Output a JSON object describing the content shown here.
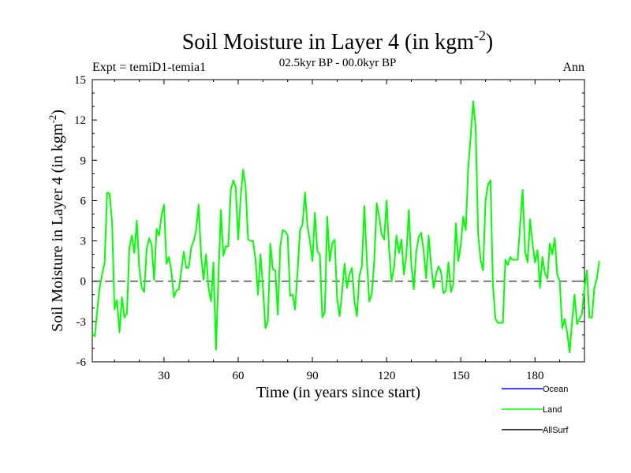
{
  "chart_data": {
    "type": "line",
    "title_main": "Soil Moisture in Layer 4 (in kgm",
    "title_sup": "-2",
    "title_close": ")",
    "subtitle": "02.5kyr BP - 00.0kyr BP",
    "left_label": "Expt = temiD1-temia1",
    "right_label": "Ann",
    "xlabel": "Time (in years since start)",
    "ylabel_main": "Soil Moisture in Layer 4 (in kgm",
    "ylabel_sup": "-2",
    "ylabel_close": ")",
    "xlim": [
      1,
      200
    ],
    "ylim": [
      -6,
      15
    ],
    "x_ticks": [
      "30",
      "60",
      "90",
      "120",
      "150",
      "180"
    ],
    "y_ticks": [
      "15",
      "12",
      "9",
      "6",
      "3",
      "0",
      "-3",
      "-6"
    ],
    "zero_line": "dashed",
    "series": [
      {
        "name": "Ocean",
        "color": "#0000ff",
        "values": []
      },
      {
        "name": "Land",
        "color": "#00ff00",
        "values": [
          -3.9,
          -4.1,
          -2.2,
          -0.4,
          0.5,
          1.4,
          6.6,
          6.5,
          4.4,
          -2.1,
          -1.4,
          -3.8,
          -1.2,
          -2.7,
          -2.4,
          2.5,
          3.4,
          2.1,
          4.5,
          1.0,
          -0.5,
          -0.8,
          2.4,
          3.2,
          2.7,
          0.1,
          3.9,
          3.4,
          4.9,
          5.7,
          1.3,
          1.8,
          0.7,
          -1.2,
          -0.7,
          -0.6,
          0.8,
          2.2,
          1.0,
          1.0,
          2.5,
          3.0,
          3.8,
          5.7,
          1.9,
          0.1,
          2.0,
          -0.5,
          -1.5,
          1.4,
          -5.1,
          0.3,
          5.3,
          1.9,
          2.6,
          2.6,
          6.8,
          7.5,
          7.0,
          3.1,
          6.3,
          8.3,
          7.0,
          3.1,
          3.0,
          3.0,
          1.6,
          -1.0,
          2.0,
          -0.4,
          -3.5,
          -3.0,
          2.8,
          0.9,
          0.8,
          -2.5,
          2.6,
          3.8,
          3.7,
          3.4,
          -1.1,
          -1.0,
          -2.1,
          0.7,
          3.8,
          4.2,
          6.6,
          4.1,
          3.0,
          1.5,
          5.1,
          2.2,
          2.0,
          -2.7,
          -2.3,
          4.8,
          1.5,
          2.8,
          3.1,
          -1.3,
          -2.6,
          -0.8,
          1.3,
          -0.5,
          0.5,
          1.0,
          -1.5,
          -2.6,
          0.4,
          1.1,
          5.6,
          1.6,
          -1.5,
          -1.0,
          1.5,
          5.8,
          4.8,
          3.5,
          3.1,
          6.0,
          2.4,
          0.0,
          1.0,
          3.4,
          2.1,
          3.1,
          0.5,
          2.0,
          5.3,
          1.2,
          -0.6,
          2.2,
          3.3,
          3.6,
          2.2,
          0.2,
          3.4,
          1.2,
          -0.5,
          0.5,
          1.1,
          0.7,
          -0.9,
          -0.7,
          1.4,
          -0.8,
          -0.2,
          4.3,
          1.5,
          2.7,
          4.8,
          3.8,
          8.4,
          10.8,
          13.4,
          11.5,
          3.5,
          1.6,
          0.8,
          6.0,
          7.2,
          7.5,
          -0.3,
          -2.8,
          -3.1,
          -3.1,
          -3.1,
          1.6,
          1.2,
          1.8,
          1.6,
          1.6,
          1.6,
          4.2,
          6.8,
          2.2,
          1.4,
          4.6,
          2.8,
          1.4,
          2.3,
          -0.5,
          1.8,
          0.6,
          0.2,
          2.8,
          2.0,
          3.2,
          0.5,
          0.0,
          -3.5,
          -2.8,
          -3.8,
          -5.3,
          -3.0,
          -1.0,
          -3.2,
          -2.8,
          -2.4,
          -0.5,
          0.8,
          -2.7,
          -2.7,
          -0.5,
          0.2,
          1.5
        ]
      },
      {
        "name": "AllSurf",
        "color": "#000000",
        "values": []
      }
    ],
    "legend_position": "bottom-right"
  }
}
